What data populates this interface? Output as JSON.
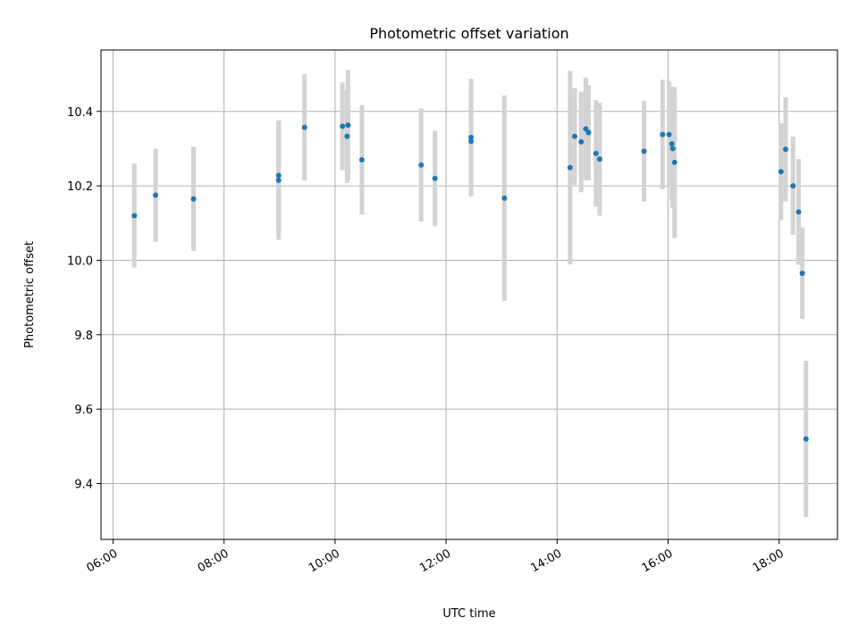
{
  "chart_data": {
    "type": "scatter",
    "title": "Photometric offset variation",
    "xlabel": "UTC time",
    "ylabel": "Photometric offset",
    "x_unit": "UTC hour of day",
    "xlim": [
      "05:47",
      "19:03"
    ],
    "ylim": [
      9.25,
      10.565
    ],
    "grid": true,
    "legend": "none",
    "xticks": [
      "06:00",
      "08:00",
      "10:00",
      "12:00",
      "14:00",
      "16:00",
      "18:00"
    ],
    "yticks": [
      "9.4",
      "9.6",
      "9.8",
      "10.0",
      "10.2",
      "10.4"
    ],
    "marker_color": "#1f77b4",
    "errorbar_color": "#d3d3d3",
    "points": [
      {
        "t": "06:23",
        "y": 10.12,
        "err": 0.14
      },
      {
        "t": "06:46",
        "y": 10.175,
        "err": 0.125
      },
      {
        "t": "07:27",
        "y": 10.165,
        "err": 0.14
      },
      {
        "t": "08:59",
        "y": 10.228,
        "err": 0.148
      },
      {
        "t": "08:59",
        "y": 10.215,
        "err": 0.16
      },
      {
        "t": "09:27",
        "y": 10.357,
        "err": 0.143
      },
      {
        "t": "10:08",
        "y": 10.36,
        "err": 0.118
      },
      {
        "t": "10:13",
        "y": 10.333,
        "err": 0.125
      },
      {
        "t": "10:14",
        "y": 10.363,
        "err": 0.148
      },
      {
        "t": "10:29",
        "y": 10.27,
        "err": 0.147
      },
      {
        "t": "11:33",
        "y": 10.256,
        "err": 0.152
      },
      {
        "t": "11:48",
        "y": 10.22,
        "err": 0.128
      },
      {
        "t": "12:27",
        "y": 10.33,
        "err": 0.158
      },
      {
        "t": "12:27",
        "y": 10.32,
        "err": 0.148
      },
      {
        "t": "13:03",
        "y": 10.167,
        "err": 0.276
      },
      {
        "t": "14:14",
        "y": 10.249,
        "err": 0.26
      },
      {
        "t": "14:19",
        "y": 10.333,
        "err": 0.13
      },
      {
        "t": "14:26",
        "y": 10.318,
        "err": 0.135
      },
      {
        "t": "14:31",
        "y": 10.353,
        "err": 0.138
      },
      {
        "t": "14:34",
        "y": 10.343,
        "err": 0.128
      },
      {
        "t": "14:42",
        "y": 10.287,
        "err": 0.143
      },
      {
        "t": "14:46",
        "y": 10.272,
        "err": 0.152
      },
      {
        "t": "15:34",
        "y": 10.293,
        "err": 0.135
      },
      {
        "t": "15:54",
        "y": 10.338,
        "err": 0.147
      },
      {
        "t": "16:01",
        "y": 10.338,
        "err": 0.143
      },
      {
        "t": "16:04",
        "y": 10.313,
        "err": 0.153
      },
      {
        "t": "16:05",
        "y": 10.3,
        "err": 0.16
      },
      {
        "t": "16:07",
        "y": 10.263,
        "err": 0.203
      },
      {
        "t": "18:02",
        "y": 10.238,
        "err": 0.13
      },
      {
        "t": "18:07",
        "y": 10.298,
        "err": 0.14
      },
      {
        "t": "18:15",
        "y": 10.2,
        "err": 0.132
      },
      {
        "t": "18:21",
        "y": 10.13,
        "err": 0.142
      },
      {
        "t": "18:25",
        "y": 9.965,
        "err": 0.123
      },
      {
        "t": "18:29",
        "y": 9.52,
        "err": 0.21
      }
    ]
  }
}
